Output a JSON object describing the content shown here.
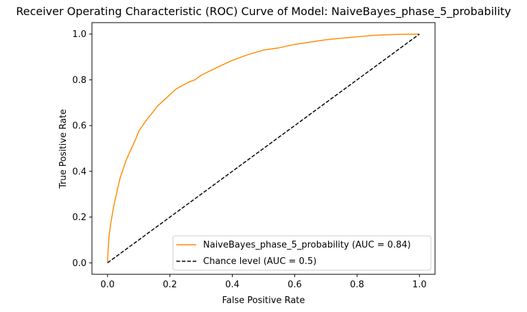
{
  "chart_data": {
    "type": "line",
    "title": "Receiver Operating Characteristic (ROC) Curve of Model: NaiveBayes_phase_5_probability",
    "xlabel": "False Positive Rate",
    "ylabel": "True Positive Rate",
    "xlim": [
      -0.05,
      1.05
    ],
    "ylim": [
      -0.05,
      1.05
    ],
    "xticks": [
      0.0,
      0.2,
      0.4,
      0.6,
      0.8,
      1.0
    ],
    "yticks": [
      0.0,
      0.2,
      0.4,
      0.6,
      0.8,
      1.0
    ],
    "xtick_labels": [
      "0.0",
      "0.2",
      "0.4",
      "0.6",
      "0.8",
      "1.0"
    ],
    "ytick_labels": [
      "0.0",
      "0.2",
      "0.4",
      "0.6",
      "0.8",
      "1.0"
    ],
    "grid": false,
    "legend_position": "lower-right",
    "series": [
      {
        "name": "NaiveBayes_phase_5_probability (AUC = 0.84)",
        "color": "#ff8c00",
        "dash": "solid",
        "x": [
          0.0,
          0.002,
          0.005,
          0.01,
          0.015,
          0.02,
          0.03,
          0.04,
          0.05,
          0.06,
          0.07,
          0.08,
          0.09,
          0.1,
          0.12,
          0.14,
          0.16,
          0.18,
          0.2,
          0.22,
          0.24,
          0.26,
          0.28,
          0.3,
          0.33,
          0.36,
          0.4,
          0.45,
          0.5,
          0.55,
          0.6,
          0.65,
          0.7,
          0.75,
          0.8,
          0.85,
          0.9,
          0.95,
          1.0
        ],
        "y": [
          0.0,
          0.06,
          0.12,
          0.17,
          0.21,
          0.25,
          0.31,
          0.37,
          0.41,
          0.45,
          0.48,
          0.51,
          0.54,
          0.575,
          0.615,
          0.65,
          0.685,
          0.71,
          0.735,
          0.76,
          0.775,
          0.79,
          0.8,
          0.82,
          0.84,
          0.86,
          0.885,
          0.91,
          0.93,
          0.94,
          0.955,
          0.965,
          0.975,
          0.982,
          0.988,
          0.994,
          0.997,
          0.999,
          1.0
        ]
      },
      {
        "name": "Chance level (AUC = 0.5)",
        "color": "#000000",
        "dash": "dashed",
        "x": [
          0.0,
          1.0
        ],
        "y": [
          0.0,
          1.0
        ]
      }
    ]
  }
}
